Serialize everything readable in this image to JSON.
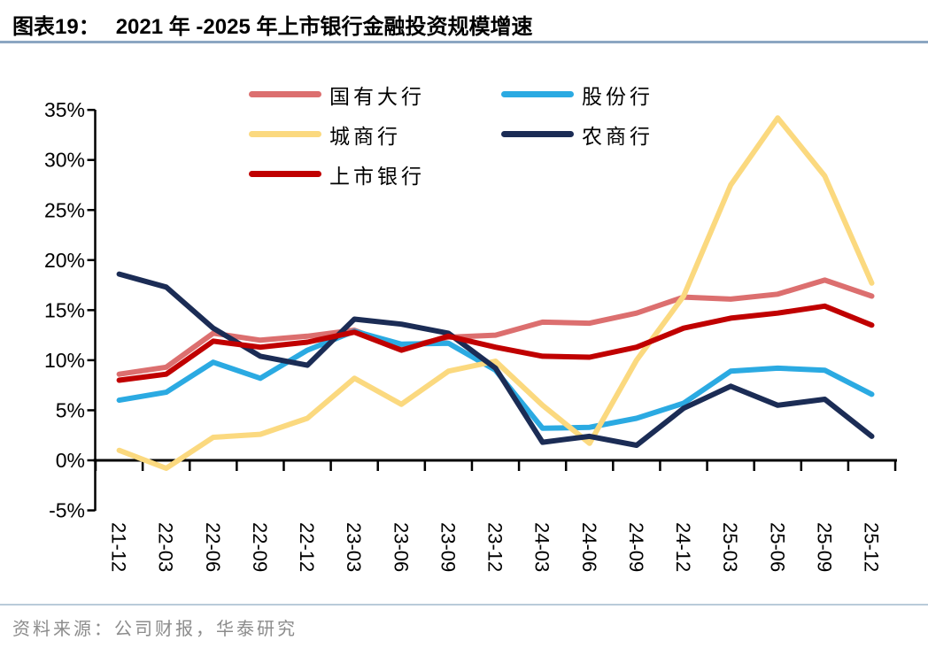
{
  "title": {
    "prefix": "图表19：",
    "text": "2021 年 -2025 年上市银行金融投资规模增速"
  },
  "source": {
    "label": "资料来源：",
    "text": "公司财报，华泰研究"
  },
  "colors": {
    "title_underline": "#8CA6C2",
    "footer_divider": "#B9CBD9",
    "source_text": "#8C8C8C",
    "axis": "#000000"
  },
  "chart_data": {
    "type": "line",
    "title": "2021 年 -2025 年上市银行金融投资规模增速",
    "categories": [
      "21-12",
      "22-03",
      "22-06",
      "22-09",
      "22-12",
      "23-03",
      "23-06",
      "23-09",
      "23-12",
      "24-03",
      "24-06",
      "24-09",
      "24-12",
      "25-03",
      "25-06",
      "25-09",
      "25-12"
    ],
    "series": [
      {
        "name": "国有大行",
        "color": "#DC6F6F",
        "values": [
          8.6,
          9.3,
          12.7,
          12.0,
          12.4,
          13.0,
          11.2,
          12.3,
          12.5,
          13.8,
          13.7,
          14.7,
          16.3,
          16.1,
          16.6,
          18.0,
          16.4
        ]
      },
      {
        "name": "股份行",
        "color": "#2BAAE2",
        "values": [
          6.0,
          6.8,
          9.8,
          8.2,
          11.0,
          12.9,
          11.6,
          11.7,
          9.0,
          3.2,
          3.3,
          4.2,
          5.7,
          8.9,
          9.2,
          9.0,
          6.6
        ]
      },
      {
        "name": "城商行",
        "color": "#FBD97F",
        "values": [
          1.0,
          -0.8,
          2.3,
          2.6,
          4.2,
          8.2,
          5.6,
          8.9,
          9.9,
          5.5,
          1.7,
          10.0,
          16.4,
          27.5,
          34.2,
          28.4,
          17.7
        ]
      },
      {
        "name": "农商行",
        "color": "#1B2C55",
        "values": [
          18.6,
          17.3,
          13.2,
          10.4,
          9.5,
          14.1,
          13.6,
          12.7,
          9.2,
          1.8,
          2.4,
          1.5,
          5.2,
          7.4,
          5.5,
          6.1,
          2.4
        ]
      },
      {
        "name": "上市银行",
        "color": "#C00000",
        "values": [
          8.0,
          8.6,
          11.9,
          11.3,
          11.8,
          12.8,
          11.0,
          12.4,
          11.3,
          10.4,
          10.3,
          11.3,
          13.2,
          14.2,
          14.7,
          15.4,
          13.5
        ]
      }
    ],
    "ylim": [
      -5,
      35
    ],
    "ytick_step": 5,
    "ytick_labels": [
      "35%",
      "30%",
      "25%",
      "20%",
      "15%",
      "10%",
      "5%",
      "0%",
      "-5%"
    ],
    "xlabel": "",
    "ylabel": "",
    "grid": false,
    "legend_position": "top",
    "legend_columns": 2
  }
}
